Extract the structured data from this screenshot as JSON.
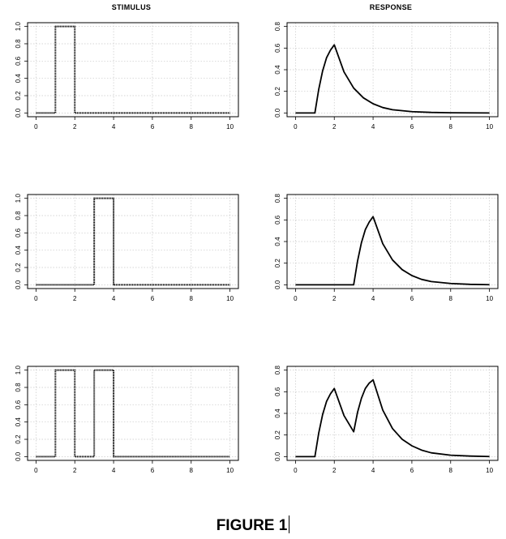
{
  "columns": {
    "left": "STIMULUS",
    "right": "RESPONSE"
  },
  "caption": "FIGURE 1",
  "chart_data": [
    {
      "type": "line",
      "panel": "stimulus-1",
      "column": "STIMULUS",
      "xlim": [
        0,
        10
      ],
      "ylim": [
        0,
        1.0
      ],
      "xticks": [
        0,
        2,
        4,
        6,
        8,
        10
      ],
      "yticks": [
        "0.0",
        "0.2",
        "0.4",
        "0.6",
        "0.8",
        "1.0"
      ],
      "grid": true,
      "line_style": "dotted",
      "x": [
        0,
        1,
        1,
        2,
        2,
        10
      ],
      "y": [
        0,
        0,
        1,
        1,
        0,
        0
      ]
    },
    {
      "type": "line",
      "panel": "response-1",
      "column": "RESPONSE",
      "xlim": [
        0,
        10
      ],
      "ylim": [
        0,
        0.8
      ],
      "xticks": [
        0,
        2,
        4,
        6,
        8,
        10
      ],
      "yticks": [
        "0.0",
        "0.2",
        "0.4",
        "0.6",
        "0.8"
      ],
      "grid": true,
      "line_style": "solid",
      "x": [
        0,
        1,
        1.2,
        1.4,
        1.6,
        1.8,
        2,
        2.5,
        3,
        3.5,
        4,
        4.5,
        5,
        6,
        7,
        8,
        9,
        10
      ],
      "y": [
        0,
        0,
        0.22,
        0.39,
        0.51,
        0.58,
        0.63,
        0.38,
        0.23,
        0.14,
        0.085,
        0.05,
        0.03,
        0.012,
        0.005,
        0.002,
        0.001,
        0
      ]
    },
    {
      "type": "line",
      "panel": "stimulus-2",
      "column": "STIMULUS",
      "xlim": [
        0,
        10
      ],
      "ylim": [
        0,
        1.0
      ],
      "xticks": [
        0,
        2,
        4,
        6,
        8,
        10
      ],
      "yticks": [
        "0.0",
        "0.2",
        "0.4",
        "0.6",
        "0.8",
        "1.0"
      ],
      "grid": true,
      "line_style": "dotted",
      "x": [
        0,
        3,
        3,
        4,
        4,
        10
      ],
      "y": [
        0,
        0,
        1,
        1,
        0,
        0
      ]
    },
    {
      "type": "line",
      "panel": "response-2",
      "column": "RESPONSE",
      "xlim": [
        0,
        10
      ],
      "ylim": [
        0,
        0.8
      ],
      "xticks": [
        0,
        2,
        4,
        6,
        8,
        10
      ],
      "yticks": [
        "0.0",
        "0.2",
        "0.4",
        "0.6",
        "0.8"
      ],
      "grid": true,
      "line_style": "solid",
      "x": [
        0,
        3,
        3.2,
        3.4,
        3.6,
        3.8,
        4,
        4.5,
        5,
        5.5,
        6,
        6.5,
        7,
        8,
        9,
        10
      ],
      "y": [
        0,
        0,
        0.22,
        0.39,
        0.51,
        0.58,
        0.63,
        0.38,
        0.23,
        0.14,
        0.085,
        0.05,
        0.03,
        0.012,
        0.004,
        0.001
      ]
    },
    {
      "type": "line",
      "panel": "stimulus-3",
      "column": "STIMULUS",
      "xlim": [
        0,
        10
      ],
      "ylim": [
        0,
        1.0
      ],
      "xticks": [
        0,
        2,
        4,
        6,
        8,
        10
      ],
      "yticks": [
        "0.0",
        "0.2",
        "0.4",
        "0.6",
        "0.8",
        "1.0"
      ],
      "grid": true,
      "line_style": "dotted",
      "x": [
        0,
        1,
        1,
        2,
        2,
        3,
        3,
        4,
        4,
        10
      ],
      "y": [
        0,
        0,
        1,
        1,
        0,
        0,
        1,
        1,
        0,
        0
      ]
    },
    {
      "type": "line",
      "panel": "response-3",
      "column": "RESPONSE",
      "xlim": [
        0,
        10
      ],
      "ylim": [
        0,
        0.8
      ],
      "xticks": [
        0,
        2,
        4,
        6,
        8,
        10
      ],
      "yticks": [
        "0.0",
        "0.2",
        "0.4",
        "0.6",
        "0.8"
      ],
      "grid": true,
      "line_style": "solid",
      "x": [
        0,
        1,
        1.2,
        1.4,
        1.6,
        1.8,
        2,
        2.5,
        3,
        3.2,
        3.4,
        3.6,
        3.8,
        4,
        4.5,
        5,
        5.5,
        6,
        6.5,
        7,
        8,
        9,
        10
      ],
      "y": [
        0,
        0,
        0.22,
        0.39,
        0.51,
        0.58,
        0.63,
        0.38,
        0.23,
        0.41,
        0.54,
        0.63,
        0.68,
        0.71,
        0.43,
        0.26,
        0.16,
        0.1,
        0.06,
        0.035,
        0.013,
        0.005,
        0.001
      ]
    }
  ]
}
